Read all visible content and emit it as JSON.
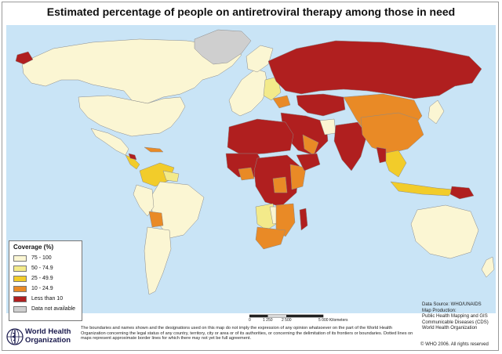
{
  "title": "Estimated percentage of people on antiretroviral therapy among those in need",
  "colors": {
    "ocean": "#c9e4f6",
    "c75_100": "#fbf6d3",
    "c50_74": "#f3ea8a",
    "c25_49": "#f2cc2a",
    "c10_24": "#e98a26",
    "lt10": "#b01f1f",
    "na": "#cfcfcf",
    "border": "#8a8a8a"
  },
  "legend": {
    "title": "Coverage (%)",
    "items": [
      {
        "label": "75 - 100",
        "color": "#fbf6d3"
      },
      {
        "label": "50 - 74.9",
        "color": "#f3ea8a"
      },
      {
        "label": "25 - 49.9",
        "color": "#f2cc2a"
      },
      {
        "label": "10 - 24.9",
        "color": "#e98a26"
      },
      {
        "label": "Less than 10",
        "color": "#b01f1f"
      },
      {
        "label": "Data not available",
        "color": "#cfcfcf"
      }
    ]
  },
  "scale": {
    "labels": [
      "0",
      "1 250",
      "2 500",
      "5 000 Kilometers"
    ]
  },
  "sources": {
    "data_source": "Data Source: WHO/UNAIDS",
    "map_production": "Map Production:",
    "line1": "Public Health Mapping and GIS",
    "line2": "Communicable Diseases (CDS)",
    "line3": "World Health Organization"
  },
  "copyright": "© WHO 2006. All rights reserved",
  "disclaimer": "The boundaries and names shown and the designations used on this map do not imply the expression of any opinion whatsoever on the part of the World Health Organization concerning the legal status of any country, territory, city or area or of its authorities, or concerning the delimitation of its frontiers or boundaries. Dotted lines on maps represent approximate border lines for which there may not yet be full agreement.",
  "logo": {
    "line1": "World Health",
    "line2": "Organization"
  }
}
